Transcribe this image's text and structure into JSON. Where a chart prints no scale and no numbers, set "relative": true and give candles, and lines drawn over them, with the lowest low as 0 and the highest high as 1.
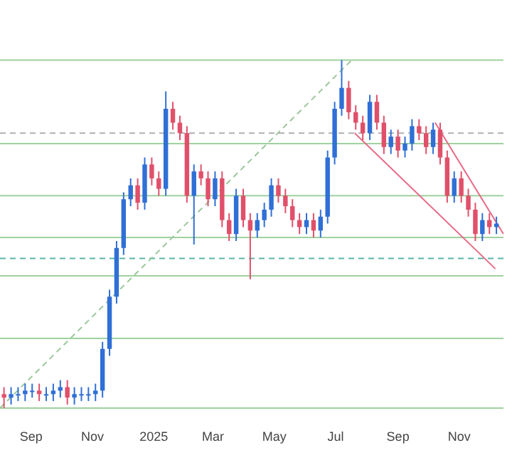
{
  "chart_data": {
    "type": "candlestick",
    "relative": true,
    "legend": false,
    "grid": false,
    "x": [
      "2024-08-05",
      "2024-08-12",
      "2024-08-19",
      "2024-08-26",
      "2024-09-02",
      "2024-09-09",
      "2024-09-16",
      "2024-09-23",
      "2024-09-30",
      "2024-10-07",
      "2024-10-14",
      "2024-10-21",
      "2024-10-28",
      "2024-11-04",
      "2024-11-11",
      "2024-11-18",
      "2024-11-25",
      "2024-12-02",
      "2024-12-09",
      "2024-12-16",
      "2024-12-23",
      "2024-12-30",
      "2025-01-06",
      "2025-01-13",
      "2025-01-20",
      "2025-01-27",
      "2025-02-03",
      "2025-02-10",
      "2025-02-17",
      "2025-02-24",
      "2025-03-03",
      "2025-03-10",
      "2025-03-17",
      "2025-03-24",
      "2025-03-31",
      "2025-04-07",
      "2025-04-14",
      "2025-04-21",
      "2025-04-28",
      "2025-05-05",
      "2025-05-12",
      "2025-05-19",
      "2025-05-26",
      "2025-06-02",
      "2025-06-09",
      "2025-06-16",
      "2025-06-23",
      "2025-06-30",
      "2025-07-07",
      "2025-07-14",
      "2025-07-21",
      "2025-07-28",
      "2025-08-04",
      "2025-08-11",
      "2025-08-18",
      "2025-08-25",
      "2025-09-01",
      "2025-09-08",
      "2025-09-15",
      "2025-09-22",
      "2025-09-29",
      "2025-10-06",
      "2025-10-13",
      "2025-10-20",
      "2025-10-27",
      "2025-11-03",
      "2025-11-10",
      "2025-11-17",
      "2025-11-24",
      "2025-12-01",
      "2025-12-08"
    ],
    "ohlc": [
      [
        0.04,
        0.06,
        0,
        0.03
      ],
      [
        0.03,
        0.06,
        0.01,
        0.04
      ],
      [
        0.04,
        0.06,
        0.02,
        0.04
      ],
      [
        0.04,
        0.07,
        0.02,
        0.05
      ],
      [
        0.05,
        0.07,
        0.03,
        0.05
      ],
      [
        0.05,
        0.07,
        0.02,
        0.04
      ],
      [
        0.04,
        0.06,
        0.02,
        0.04
      ],
      [
        0.04,
        0.07,
        0.02,
        0.05
      ],
      [
        0.05,
        0.08,
        0.03,
        0.06
      ],
      [
        0.06,
        0.08,
        0.01,
        0.03
      ],
      [
        0.03,
        0.06,
        0.01,
        0.04
      ],
      [
        0.04,
        0.06,
        0.02,
        0.04
      ],
      [
        0.04,
        0.06,
        0.02,
        0.04
      ],
      [
        0.04,
        0.07,
        0.02,
        0.05
      ],
      [
        0.05,
        0.19,
        0.03,
        0.17
      ],
      [
        0.17,
        0.34,
        0.15,
        0.32
      ],
      [
        0.32,
        0.48,
        0.3,
        0.46
      ],
      [
        0.46,
        0.62,
        0.44,
        0.6
      ],
      [
        0.6,
        0.66,
        0.58,
        0.64
      ],
      [
        0.64,
        0.66,
        0.57,
        0.59
      ],
      [
        0.59,
        0.72,
        0.57,
        0.7
      ],
      [
        0.7,
        0.72,
        0.64,
        0.66
      ],
      [
        0.66,
        0.68,
        0.61,
        0.63
      ],
      [
        0.63,
        0.91,
        0.61,
        0.86
      ],
      [
        0.86,
        0.88,
        0.8,
        0.82
      ],
      [
        0.82,
        0.84,
        0.77,
        0.79
      ],
      [
        0.79,
        0.81,
        0.59,
        0.61
      ],
      [
        0.61,
        0.7,
        0.47,
        0.68
      ],
      [
        0.68,
        0.7,
        0.64,
        0.66
      ],
      [
        0.66,
        0.68,
        0.58,
        0.6
      ],
      [
        0.6,
        0.68,
        0.58,
        0.66
      ],
      [
        0.66,
        0.68,
        0.52,
        0.54
      ],
      [
        0.54,
        0.56,
        0.48,
        0.5
      ],
      [
        0.5,
        0.63,
        0.48,
        0.61
      ],
      [
        0.61,
        0.63,
        0.52,
        0.54
      ],
      [
        0.54,
        0.56,
        0.37,
        0.51
      ],
      [
        0.51,
        0.56,
        0.49,
        0.54
      ],
      [
        0.54,
        0.59,
        0.52,
        0.57
      ],
      [
        0.57,
        0.66,
        0.55,
        0.64
      ],
      [
        0.64,
        0.66,
        0.59,
        0.61
      ],
      [
        0.61,
        0.63,
        0.56,
        0.58
      ],
      [
        0.58,
        0.6,
        0.52,
        0.54
      ],
      [
        0.54,
        0.56,
        0.5,
        0.52
      ],
      [
        0.52,
        0.56,
        0.5,
        0.54
      ],
      [
        0.54,
        0.56,
        0.49,
        0.51
      ],
      [
        0.51,
        0.57,
        0.49,
        0.55
      ],
      [
        0.55,
        0.74,
        0.53,
        0.72
      ],
      [
        0.72,
        0.88,
        0.7,
        0.86
      ],
      [
        0.86,
        1,
        0.84,
        0.92
      ],
      [
        0.92,
        0.94,
        0.83,
        0.85
      ],
      [
        0.85,
        0.87,
        0.8,
        0.82
      ],
      [
        0.82,
        0.84,
        0.77,
        0.79
      ],
      [
        0.79,
        0.9,
        0.77,
        0.88
      ],
      [
        0.88,
        0.9,
        0.8,
        0.82
      ],
      [
        0.82,
        0.84,
        0.73,
        0.75
      ],
      [
        0.75,
        0.8,
        0.73,
        0.78
      ],
      [
        0.78,
        0.8,
        0.72,
        0.74
      ],
      [
        0.74,
        0.78,
        0.72,
        0.76
      ],
      [
        0.76,
        0.83,
        0.74,
        0.81
      ],
      [
        0.81,
        0.83,
        0.77,
        0.79
      ],
      [
        0.79,
        0.81,
        0.73,
        0.75
      ],
      [
        0.75,
        0.82,
        0.73,
        0.8
      ],
      [
        0.8,
        0.82,
        0.7,
        0.72
      ],
      [
        0.72,
        0.74,
        0.59,
        0.61
      ],
      [
        0.61,
        0.68,
        0.59,
        0.66
      ],
      [
        0.66,
        0.68,
        0.59,
        0.61
      ],
      [
        0.61,
        0.63,
        0.55,
        0.57
      ],
      [
        0.57,
        0.59,
        0.48,
        0.5
      ],
      [
        0.5,
        0.56,
        0.48,
        0.54
      ],
      [
        0.54,
        0.56,
        0.5,
        0.52
      ],
      [
        0.52,
        0.55,
        0.5,
        0.53
      ]
    ],
    "colors": [
      "#e0506a",
      "#2f6fd6",
      "#2f6fd6",
      "#2f6fd6",
      "#2f6fd6",
      "#e0506a",
      "#2f6fd6",
      "#2f6fd6",
      "#2f6fd6",
      "#e0506a",
      "#2f6fd6",
      "#2f6fd6",
      "#2f6fd6",
      "#2f6fd6",
      "#2f6fd6",
      "#2f6fd6",
      "#2f6fd6",
      "#2f6fd6",
      "#2f6fd6",
      "#e0506a",
      "#2f6fd6",
      "#e0506a",
      "#e0506a",
      "#2f6fd6",
      "#e0506a",
      "#e0506a",
      "#e0506a",
      "#2f6fd6",
      "#e0506a",
      "#e0506a",
      "#2f6fd6",
      "#e0506a",
      "#e0506a",
      "#2f6fd6",
      "#e0506a",
      "#e0506a",
      "#2f6fd6",
      "#2f6fd6",
      "#2f6fd6",
      "#e0506a",
      "#e0506a",
      "#e0506a",
      "#e0506a",
      "#2f6fd6",
      "#e0506a",
      "#2f6fd6",
      "#2f6fd6",
      "#2f6fd6",
      "#2f6fd6",
      "#e0506a",
      "#e0506a",
      "#e0506a",
      "#2f6fd6",
      "#e0506a",
      "#e0506a",
      "#2f6fd6",
      "#e0506a",
      "#2f6fd6",
      "#2f6fd6",
      "#e0506a",
      "#e0506a",
      "#2f6fd6",
      "#e0506a",
      "#e0506a",
      "#2f6fd6",
      "#e0506a",
      "#e0506a",
      "#e0506a",
      "#2f6fd6",
      "#e0506a",
      "#2f6fd6"
    ],
    "series": [
      {
        "type": "line",
        "color": "#9cc79c",
        "line_style": "dashed",
        "x": [
          "2024-08-01",
          "2025-07-17"
        ],
        "values": [
          0,
          1
        ]
      },
      {
        "type": "line",
        "color": "#e86a86",
        "line_style": "solid",
        "x": [
          "2025-10-08",
          "2025-12-15"
        ],
        "values": [
          0.82,
          0.5
        ]
      },
      {
        "type": "line",
        "color": "#e86a86",
        "line_style": "solid",
        "x": [
          "2025-07-20",
          "2025-12-07"
        ],
        "values": [
          0.79,
          0.4
        ]
      }
    ],
    "ref_lines": [
      {
        "axis": "y",
        "value": 1,
        "color": "#9fd19f"
      },
      {
        "axis": "y",
        "value": 0.76,
        "color": "#9fd19f"
      },
      {
        "axis": "y",
        "value": 0.61,
        "color": "#9fd19f"
      },
      {
        "axis": "y",
        "value": 0.49,
        "color": "#9fd19f"
      },
      {
        "axis": "y",
        "value": 0.38,
        "color": "#9fd19f"
      },
      {
        "axis": "y",
        "value": 0.2,
        "color": "#9fd19f"
      },
      {
        "axis": "y",
        "value": 0,
        "color": "#9fd19f"
      },
      {
        "axis": "y",
        "value": 0.43,
        "color": "#5bb5a8",
        "line_style": "dashed"
      },
      {
        "axis": "y",
        "value": 0.79,
        "color": "#b0b0b0",
        "line_style": "dashed"
      }
    ],
    "xlim": [
      "2024-08-01",
      "2025-12-15"
    ],
    "xticks": [
      {
        "value": "2024-09-01",
        "label": "Sep"
      },
      {
        "value": "2024-11-01",
        "label": "Nov"
      },
      {
        "value": "2025-01-01",
        "label": "2025"
      },
      {
        "value": "2025-03-01",
        "label": "Mar"
      },
      {
        "value": "2025-05-01",
        "label": "May"
      },
      {
        "value": "2025-07-01",
        "label": "Jul"
      },
      {
        "value": "2025-09-01",
        "label": "Sep"
      },
      {
        "value": "2025-11-01",
        "label": "Nov"
      }
    ],
    "tick_labels": "x"
  }
}
